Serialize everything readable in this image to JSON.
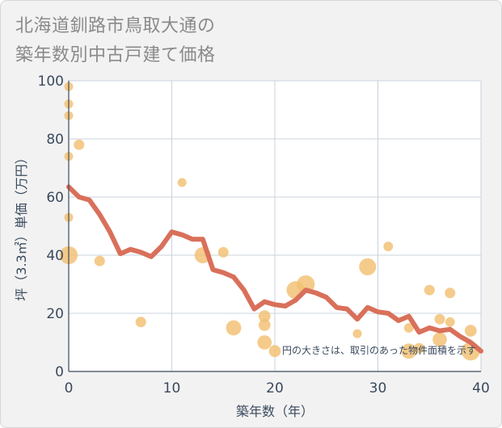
{
  "title": {
    "line1": "北海道釧路市鳥取大通の",
    "line2": "築年数別中古戸建て価格"
  },
  "chart_data": {
    "type": "scatter",
    "xlabel": "築年数（年）",
    "ylabel": "坪（3.3㎡）単価（万円）",
    "xlim": [
      0,
      40
    ],
    "ylim": [
      0,
      100
    ],
    "xticks": [
      0,
      10,
      20,
      30,
      40
    ],
    "yticks": [
      0,
      20,
      40,
      60,
      80,
      100
    ],
    "grid": true,
    "note": "円の大きさは、取引のあった物件面積を示す",
    "colors": {
      "bubble": "#f2c071",
      "line": "#d9705a",
      "grid": "#c8d3de",
      "axis": "#3a4a5e"
    },
    "bubbles": [
      {
        "x": 0,
        "y": 98,
        "size": 1
      },
      {
        "x": 0,
        "y": 92,
        "size": 1
      },
      {
        "x": 0,
        "y": 88,
        "size": 1
      },
      {
        "x": 0,
        "y": 74,
        "size": 1
      },
      {
        "x": 0,
        "y": 53,
        "size": 1
      },
      {
        "x": 0,
        "y": 40,
        "size": 5
      },
      {
        "x": 1,
        "y": 78,
        "size": 1.5
      },
      {
        "x": 3,
        "y": 38,
        "size": 1.5
      },
      {
        "x": 7,
        "y": 17,
        "size": 1.5
      },
      {
        "x": 11,
        "y": 65,
        "size": 1
      },
      {
        "x": 13,
        "y": 40,
        "size": 4
      },
      {
        "x": 15,
        "y": 41,
        "size": 1.5
      },
      {
        "x": 16,
        "y": 15,
        "size": 3.5
      },
      {
        "x": 19,
        "y": 19,
        "size": 2
      },
      {
        "x": 19,
        "y": 16,
        "size": 2
      },
      {
        "x": 19,
        "y": 10,
        "size": 3
      },
      {
        "x": 20,
        "y": 7,
        "size": 2
      },
      {
        "x": 22,
        "y": 28,
        "size": 5
      },
      {
        "x": 23,
        "y": 30,
        "size": 5
      },
      {
        "x": 28,
        "y": 13,
        "size": 1
      },
      {
        "x": 29,
        "y": 36,
        "size": 4.5
      },
      {
        "x": 31,
        "y": 43,
        "size": 1.2
      },
      {
        "x": 33,
        "y": 15,
        "size": 1.2
      },
      {
        "x": 33,
        "y": 7,
        "size": 3.5
      },
      {
        "x": 34,
        "y": 8,
        "size": 1.5
      },
      {
        "x": 35,
        "y": 28,
        "size": 1.5
      },
      {
        "x": 36,
        "y": 18,
        "size": 1.5
      },
      {
        "x": 36,
        "y": 11,
        "size": 3
      },
      {
        "x": 37,
        "y": 27,
        "size": 1.5
      },
      {
        "x": 37,
        "y": 17,
        "size": 1.2
      },
      {
        "x": 39,
        "y": 14,
        "size": 2
      },
      {
        "x": 39,
        "y": 7,
        "size": 5.5
      }
    ],
    "trend": {
      "x": [
        0,
        1,
        2,
        3,
        4,
        5,
        6,
        7,
        8,
        9,
        10,
        11,
        12,
        13,
        14,
        15,
        16,
        17,
        18,
        19,
        20,
        21,
        22,
        23,
        24,
        25,
        26,
        27,
        28,
        29,
        30,
        31,
        32,
        33,
        34,
        35,
        36,
        37,
        38,
        39,
        40
      ],
      "y": [
        63.5,
        60,
        59,
        54,
        48,
        40.5,
        42,
        41,
        39.5,
        43,
        48,
        47,
        45.5,
        45.5,
        35,
        34,
        32.5,
        28,
        21.5,
        24,
        23,
        22.5,
        24.5,
        28,
        27,
        25.5,
        22,
        21.5,
        18,
        22,
        20.5,
        20,
        17.5,
        19,
        13.5,
        15,
        14,
        14.5,
        12,
        10,
        7
      ]
    }
  }
}
